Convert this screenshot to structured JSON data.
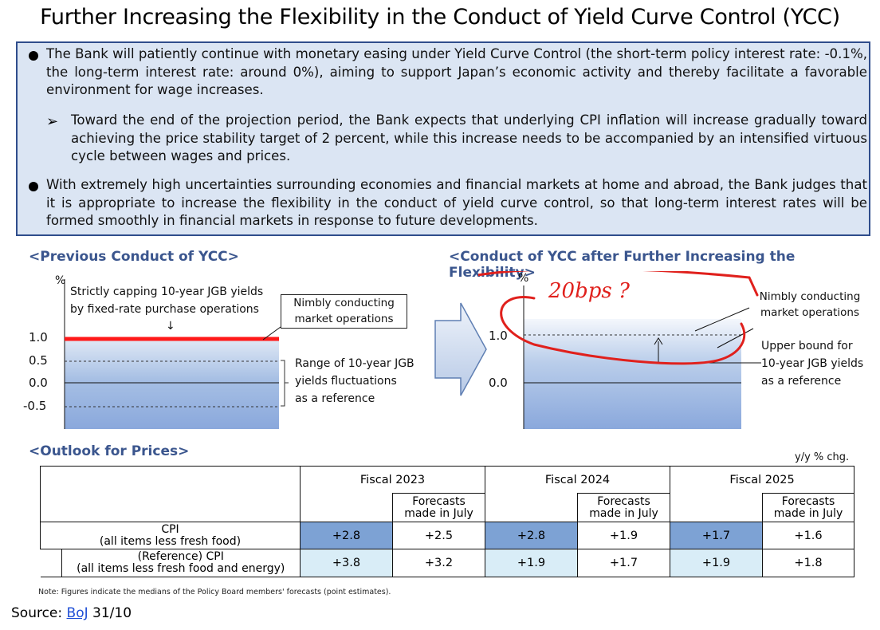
{
  "title": "Further Increasing the Flexibility in the Conduct of Yield Curve Control (YCC)",
  "summary": {
    "bullet1": "The Bank will patiently continue with monetary easing under Yield Curve Control (the short-term policy interest rate: -0.1%, the long-term interest rate: around 0%), aiming to support Japan’s economic activity and thereby facilitate a favorable environment for wage increases.",
    "sub_bullet1": "Toward the end of the projection period, the Bank expects that underlying CPI inflation will increase gradually toward achieving the price stability target of 2 percent, while this increase needs to be accompanied by an intensified virtuous cycle between wages and prices.",
    "bullet2": "With extremely high uncertainties surrounding economies and financial markets at home and abroad, the Bank judges that it is appropriate to increase the flexibility in the conduct of yield curve control, so that long-term interest rates will be formed smoothly in financial markets in response to future developments."
  },
  "previous": {
    "heading": "<Previous Conduct of YCC>",
    "unit": "%",
    "ticks": [
      "1.0",
      "0.5",
      "0.0",
      "-0.5"
    ],
    "cap_note_line1": "Strictly capping 10-year JGB yields",
    "cap_note_line2": "by fixed-rate purchase operations",
    "down_arrow": "↓",
    "market_ops_line1": "Nimbly conducting",
    "market_ops_line2": "market operations",
    "range_line1": "Range of 10-year JGB",
    "range_line2": "yields fluctuations",
    "range_line3": "as a reference"
  },
  "after": {
    "heading": "<Conduct of YCC after Further Increasing the Flexibility>",
    "unit": "%",
    "ticks": [
      "1.0",
      "0.0"
    ],
    "market_ops_line1": "Nimbly conducting",
    "market_ops_line2": "market operations",
    "upper_line1": "Upper bound for",
    "upper_line2": "10-year JGB yields",
    "upper_line3": "as a reference",
    "handwritten": "20bps ?"
  },
  "outlook": {
    "heading": "<Outlook for Prices>",
    "unit": "y/y % chg.",
    "years": [
      "Fiscal 2023",
      "Fiscal 2024",
      "Fiscal 2025"
    ],
    "forecast_label_line1": "Forecasts",
    "forecast_label_line2": "made in July",
    "rows": [
      {
        "label_line1": "CPI",
        "label_line2": "(all items less fresh food)",
        "values": [
          "+2.8",
          "+2.5",
          "+2.8",
          "+1.9",
          "+1.7",
          "+1.6"
        ]
      },
      {
        "label_line1": "(Reference) CPI",
        "label_line2": "(all items less fresh food and energy)",
        "values": [
          "+3.8",
          "+3.2",
          "+1.9",
          "+1.7",
          "+1.9",
          "+1.8"
        ]
      }
    ]
  },
  "note": "Note: Figures indicate the medians of the Policy Board members' forecasts (point estimates).",
  "source": {
    "prefix": "Source: ",
    "link": "BoJ",
    "suffix": " 31/10"
  },
  "colors": {
    "heading_blue": "#3b568e",
    "cap_red": "#ff1a1a",
    "ink_red": "#e0201c",
    "highlight_blue": "#7da2d4",
    "pale_blue": "#d9edf7"
  }
}
